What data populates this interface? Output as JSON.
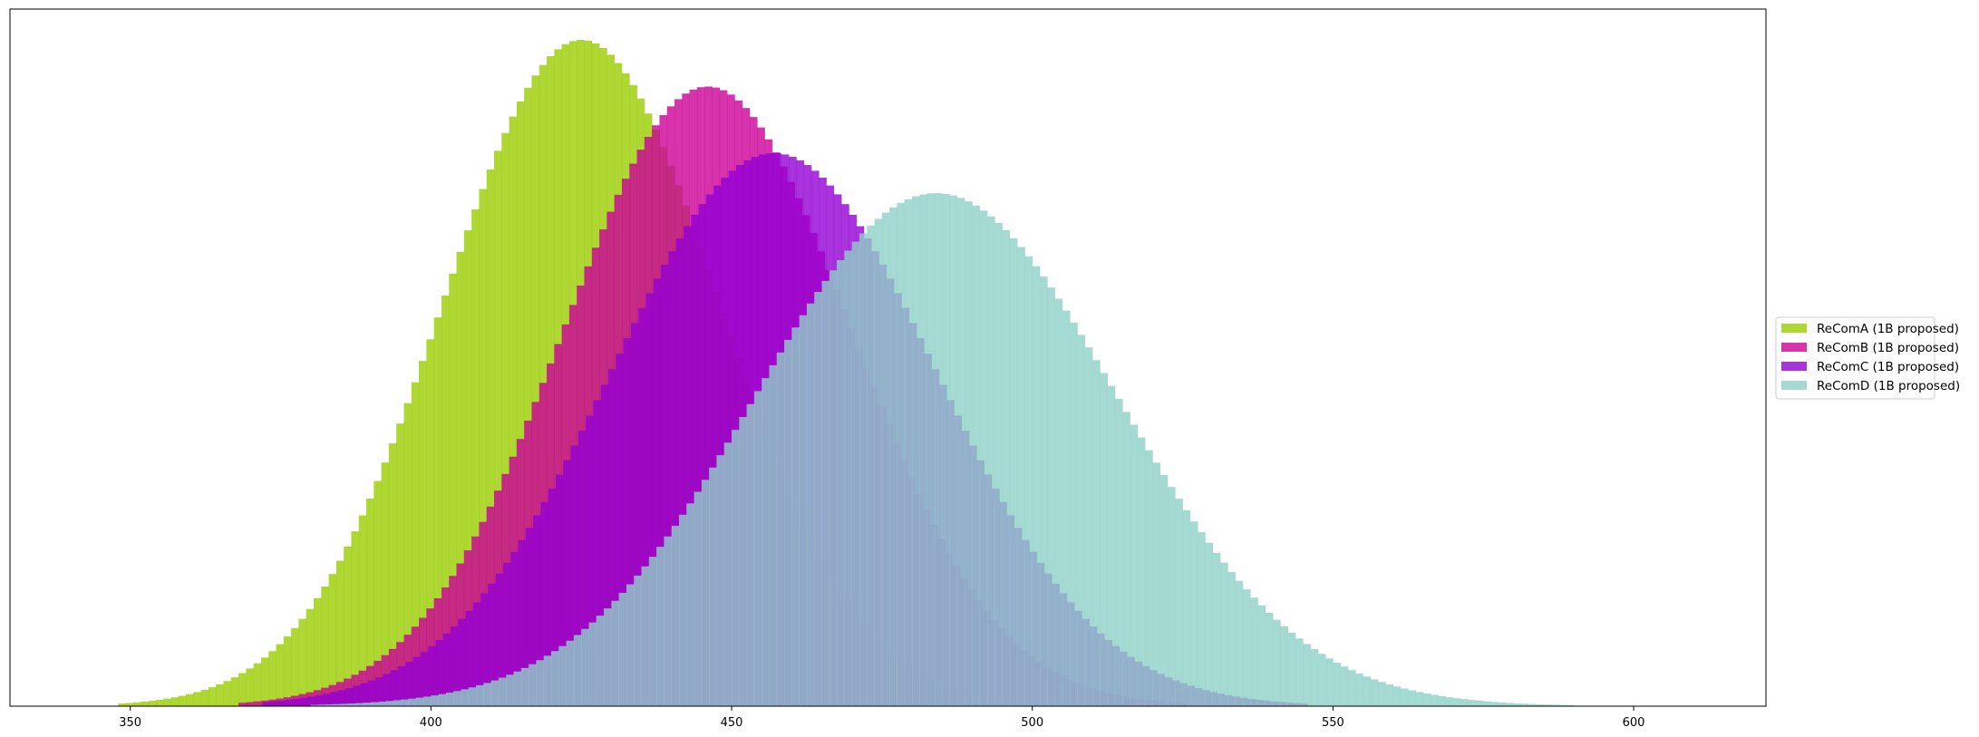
{
  "chart_data": {
    "type": "histogram",
    "title": "",
    "xlabel": "",
    "ylabel": "",
    "xlim": [
      330,
      622
    ],
    "x_ticks": [
      "350",
      "400",
      "450",
      "500",
      "550",
      "600"
    ],
    "x_tick_values": [
      350,
      400,
      450,
      500,
      550,
      600
    ],
    "y_ticks_visible": false,
    "bin_width": 1.25,
    "legend_position": "outside center-right",
    "series": [
      {
        "name": "ReComA (1B proposed)",
        "color": "#9acd00",
        "opacity": 0.8,
        "mean": 425,
        "std": 23,
        "peak": 1.0,
        "range": [
          348,
          500
        ]
      },
      {
        "name": "ReComB (1B proposed)",
        "color": "#cc0099",
        "opacity": 0.8,
        "mean": 446,
        "std": 24,
        "peak": 0.93,
        "range": [
          368,
          525
        ]
      },
      {
        "name": "ReComC (1B proposed)",
        "color": "#9400d3",
        "opacity": 0.8,
        "mean": 457,
        "std": 27,
        "peak": 0.83,
        "range": [
          372,
          545
        ]
      },
      {
        "name": "ReComD (1B proposed)",
        "color": "#8fd1c8",
        "opacity": 0.8,
        "mean": 484,
        "std": 30,
        "peak": 0.77,
        "range": [
          380,
          610
        ]
      }
    ]
  }
}
